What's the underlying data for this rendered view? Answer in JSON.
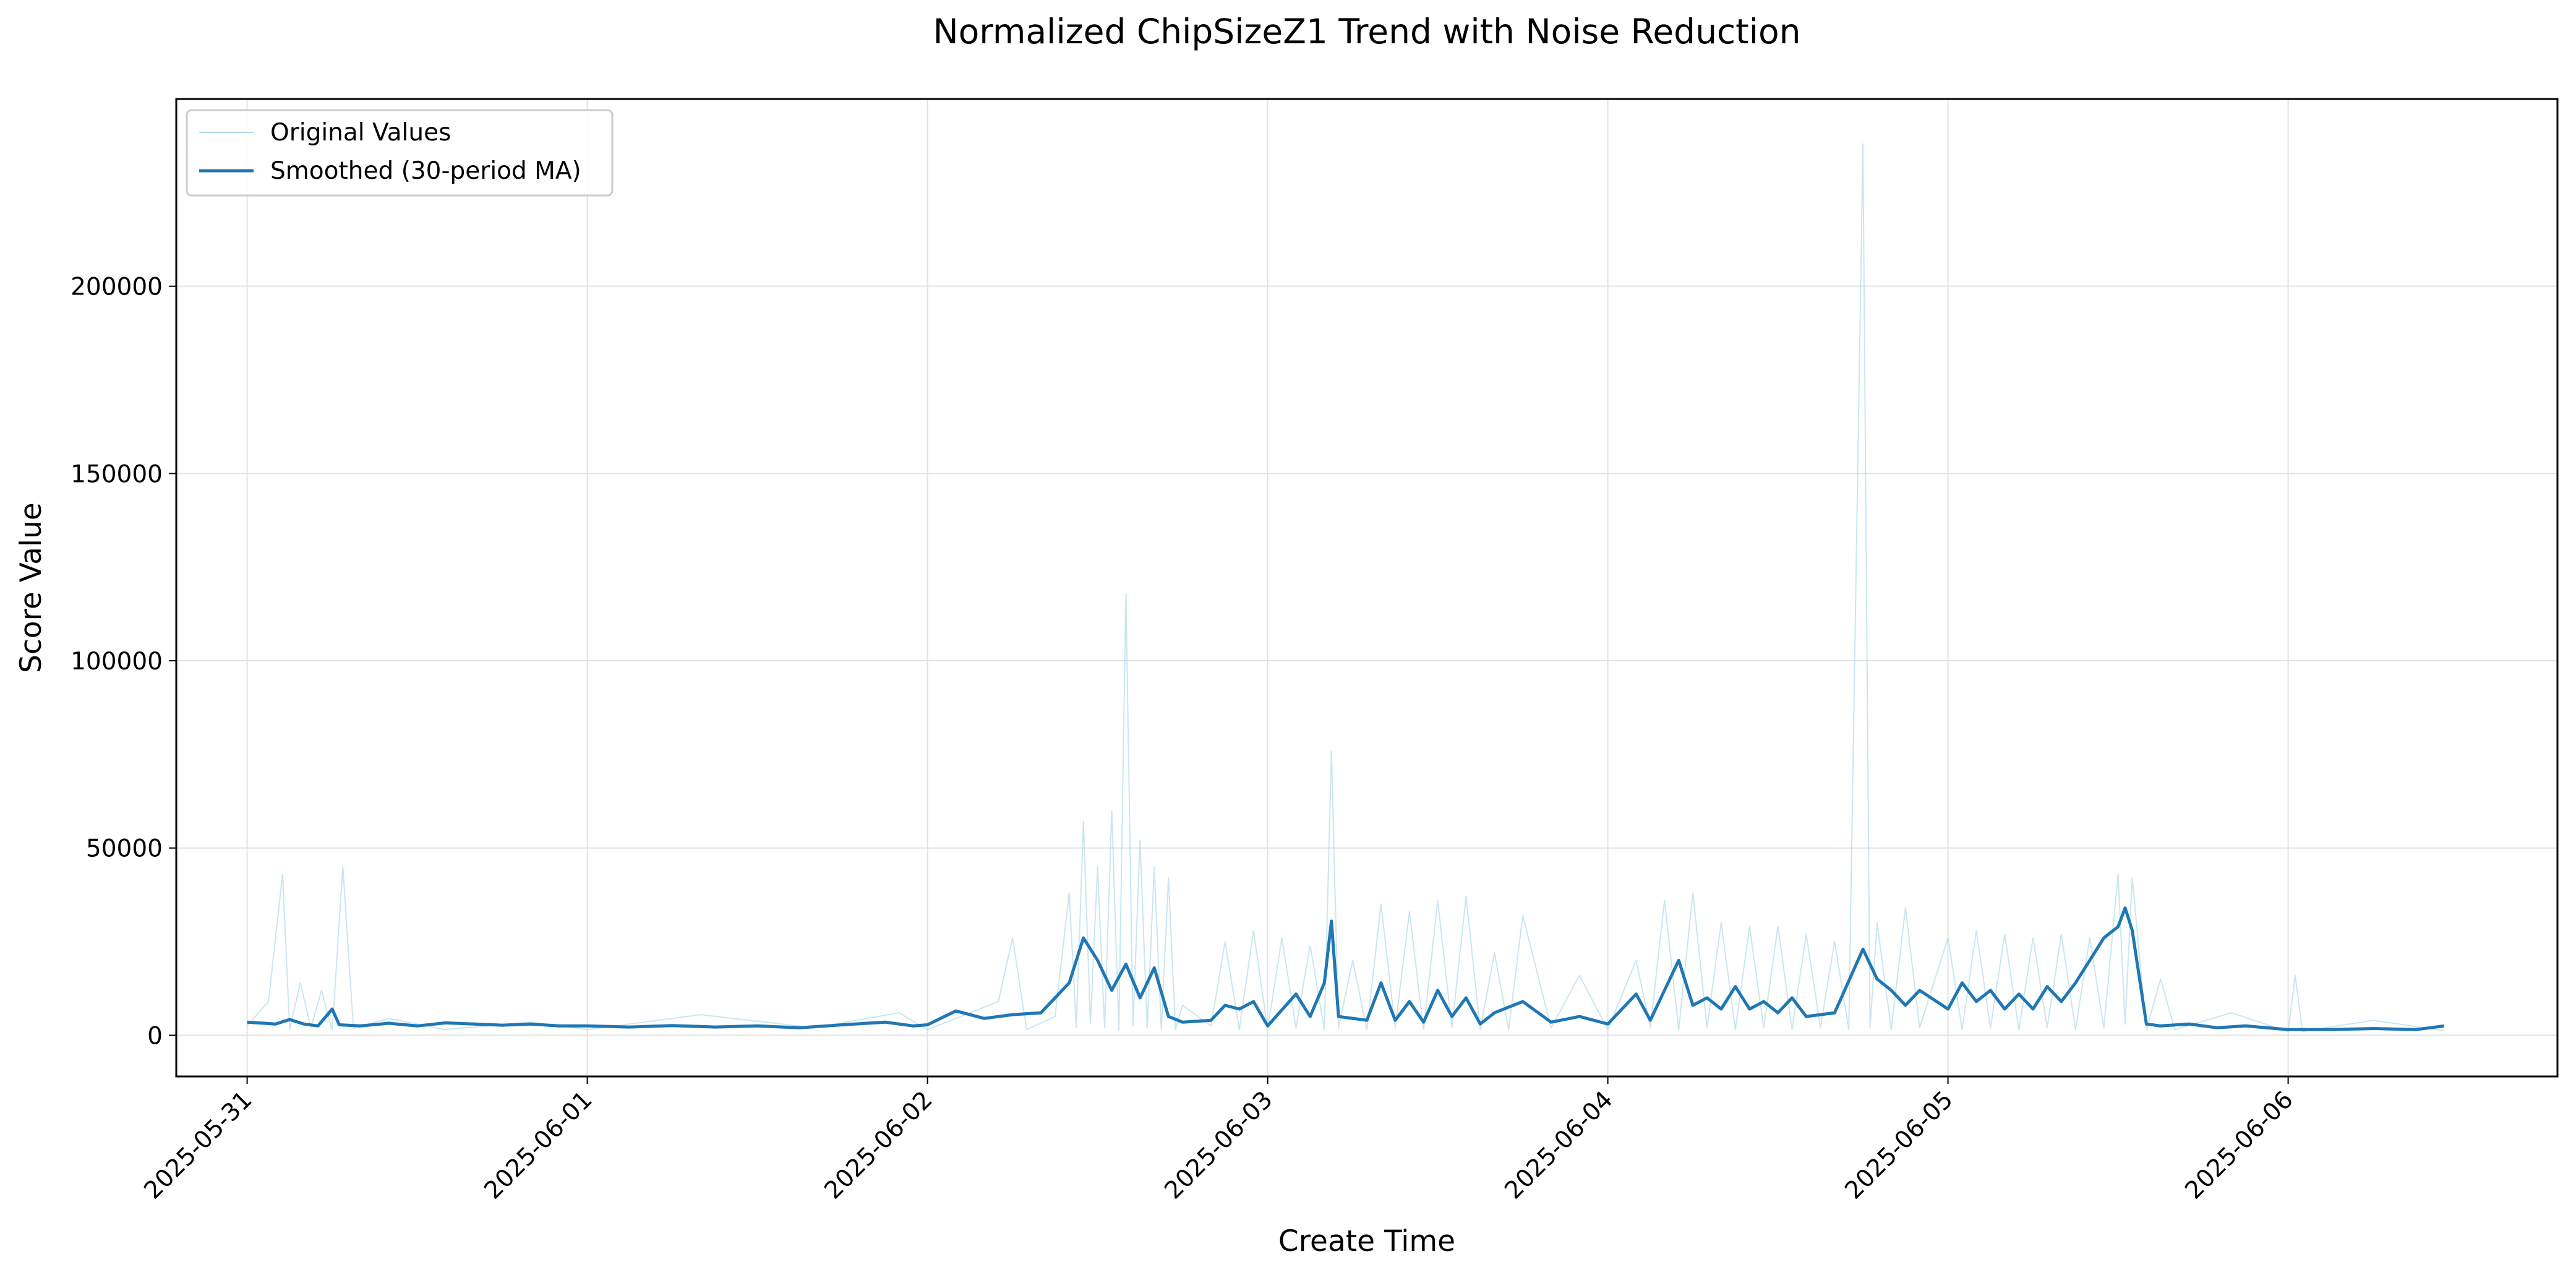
{
  "chart_data": {
    "type": "line",
    "title": "Normalized ChipSizeZ1 Trend with Noise Reduction",
    "xlabel": "Create Time",
    "ylabel": "Score Value",
    "x_axis_type": "date",
    "xlim": [
      "2025-05-30T19:00",
      "2025-06-06T19:00"
    ],
    "ylim": [
      -11000,
      250000
    ],
    "x_ticks": [
      "2025-05-31",
      "2025-06-01",
      "2025-06-02",
      "2025-06-03",
      "2025-06-04",
      "2025-06-05",
      "2025-06-06"
    ],
    "y_ticks": [
      0,
      50000,
      100000,
      150000,
      200000
    ],
    "grid": true,
    "legend_position": "top-left",
    "series": [
      {
        "name": "Original Values",
        "color": "#add8e6",
        "style": "thin-spiky",
        "points": [
          [
            "2025-05-31T00:00",
            2500
          ],
          [
            "2025-05-31T01:30",
            9000
          ],
          [
            "2025-05-31T02:30",
            43000
          ],
          [
            "2025-05-31T03:00",
            1500
          ],
          [
            "2025-05-31T03:45",
            14000
          ],
          [
            "2025-05-31T04:30",
            2000
          ],
          [
            "2025-05-31T05:15",
            12000
          ],
          [
            "2025-05-31T06:00",
            1200
          ],
          [
            "2025-05-31T06:45",
            45000
          ],
          [
            "2025-05-31T07:30",
            1800
          ],
          [
            "2025-05-31T10:00",
            4500
          ],
          [
            "2025-05-31T14:00",
            1500
          ],
          [
            "2025-05-31T20:00",
            3500
          ],
          [
            "2025-06-01T00:00",
            1500
          ],
          [
            "2025-06-01T08:00",
            5500
          ],
          [
            "2025-06-01T16:00",
            2000
          ],
          [
            "2025-06-01T22:00",
            6000
          ],
          [
            "2025-06-02T00:00",
            1500
          ],
          [
            "2025-06-02T05:00",
            9000
          ],
          [
            "2025-06-02T06:00",
            26000
          ],
          [
            "2025-06-02T07:00",
            1500
          ],
          [
            "2025-06-02T09:00",
            5000
          ],
          [
            "2025-06-02T10:00",
            38000
          ],
          [
            "2025-06-02T10:30",
            2000
          ],
          [
            "2025-06-02T11:00",
            57000
          ],
          [
            "2025-06-02T11:30",
            3000
          ],
          [
            "2025-06-02T12:00",
            45000
          ],
          [
            "2025-06-02T12:30",
            2000
          ],
          [
            "2025-06-02T13:00",
            60000
          ],
          [
            "2025-06-02T13:30",
            1500
          ],
          [
            "2025-06-02T14:00",
            118000
          ],
          [
            "2025-06-02T14:30",
            2500
          ],
          [
            "2025-06-02T15:00",
            52000
          ],
          [
            "2025-06-02T15:30",
            2000
          ],
          [
            "2025-06-02T16:00",
            45000
          ],
          [
            "2025-06-02T16:30",
            1500
          ],
          [
            "2025-06-02T17:00",
            42000
          ],
          [
            "2025-06-02T17:30",
            1500
          ],
          [
            "2025-06-02T18:00",
            8000
          ],
          [
            "2025-06-02T20:00",
            2500
          ],
          [
            "2025-06-02T21:00",
            25000
          ],
          [
            "2025-06-02T22:00",
            1500
          ],
          [
            "2025-06-02T23:00",
            28000
          ],
          [
            "2025-06-03T00:00",
            1500
          ],
          [
            "2025-06-03T01:00",
            26000
          ],
          [
            "2025-06-03T02:00",
            2000
          ],
          [
            "2025-06-03T03:00",
            24000
          ],
          [
            "2025-06-03T04:00",
            1500
          ],
          [
            "2025-06-03T04:30",
            76000
          ],
          [
            "2025-06-03T05:00",
            2000
          ],
          [
            "2025-06-03T06:00",
            20000
          ],
          [
            "2025-06-03T07:00",
            1500
          ],
          [
            "2025-06-03T08:00",
            35000
          ],
          [
            "2025-06-03T09:00",
            2000
          ],
          [
            "2025-06-03T10:00",
            33000
          ],
          [
            "2025-06-03T11:00",
            1500
          ],
          [
            "2025-06-03T12:00",
            36000
          ],
          [
            "2025-06-03T13:00",
            2000
          ],
          [
            "2025-06-03T14:00",
            37000
          ],
          [
            "2025-06-03T15:00",
            1500
          ],
          [
            "2025-06-03T16:00",
            22000
          ],
          [
            "2025-06-03T17:00",
            1500
          ],
          [
            "2025-06-03T18:00",
            32000
          ],
          [
            "2025-06-03T20:00",
            2000
          ],
          [
            "2025-06-03T22:00",
            16000
          ],
          [
            "2025-06-04T00:00",
            1500
          ],
          [
            "2025-06-04T02:00",
            20000
          ],
          [
            "2025-06-04T03:00",
            2000
          ],
          [
            "2025-06-04T04:00",
            36000
          ],
          [
            "2025-06-04T05:00",
            1500
          ],
          [
            "2025-06-04T06:00",
            38000
          ],
          [
            "2025-06-04T07:00",
            2000
          ],
          [
            "2025-06-04T08:00",
            30000
          ],
          [
            "2025-06-04T09:00",
            1500
          ],
          [
            "2025-06-04T10:00",
            29000
          ],
          [
            "2025-06-04T11:00",
            2000
          ],
          [
            "2025-06-04T12:00",
            29000
          ],
          [
            "2025-06-04T13:00",
            1500
          ],
          [
            "2025-06-04T14:00",
            27000
          ],
          [
            "2025-06-04T15:00",
            2000
          ],
          [
            "2025-06-04T16:00",
            25000
          ],
          [
            "2025-06-04T17:00",
            1500
          ],
          [
            "2025-06-04T18:00",
            238000
          ],
          [
            "2025-06-04T18:30",
            2000
          ],
          [
            "2025-06-04T19:00",
            30000
          ],
          [
            "2025-06-04T20:00",
            1500
          ],
          [
            "2025-06-04T21:00",
            34000
          ],
          [
            "2025-06-04T22:00",
            2000
          ],
          [
            "2025-06-05T00:00",
            26000
          ],
          [
            "2025-06-05T01:00",
            1500
          ],
          [
            "2025-06-05T02:00",
            28000
          ],
          [
            "2025-06-05T03:00",
            2000
          ],
          [
            "2025-06-05T04:00",
            27000
          ],
          [
            "2025-06-05T05:00",
            1500
          ],
          [
            "2025-06-05T06:00",
            26000
          ],
          [
            "2025-06-05T07:00",
            2000
          ],
          [
            "2025-06-05T08:00",
            27000
          ],
          [
            "2025-06-05T09:00",
            1500
          ],
          [
            "2025-06-05T10:00",
            26000
          ],
          [
            "2025-06-05T11:00",
            2000
          ],
          [
            "2025-06-05T12:00",
            43000
          ],
          [
            "2025-06-05T12:30",
            3000
          ],
          [
            "2025-06-05T13:00",
            42000
          ],
          [
            "2025-06-05T14:00",
            1500
          ],
          [
            "2025-06-05T15:00",
            15000
          ],
          [
            "2025-06-05T16:00",
            1500
          ],
          [
            "2025-06-05T20:00",
            6000
          ],
          [
            "2025-06-06T00:00",
            1000
          ],
          [
            "2025-06-06T00:30",
            16000
          ],
          [
            "2025-06-06T01:00",
            1000
          ],
          [
            "2025-06-06T06:00",
            4000
          ],
          [
            "2025-06-06T11:00",
            1200
          ]
        ]
      },
      {
        "name": "Smoothed (30-period MA)",
        "color": "#1f77b4",
        "style": "solid",
        "points": [
          [
            "2025-05-31T00:00",
            3500
          ],
          [
            "2025-05-31T02:00",
            3000
          ],
          [
            "2025-05-31T03:00",
            4200
          ],
          [
            "2025-05-31T04:00",
            3000
          ],
          [
            "2025-05-31T05:00",
            2500
          ],
          [
            "2025-05-31T06:00",
            7000
          ],
          [
            "2025-05-31T06:30",
            2800
          ],
          [
            "2025-05-31T08:00",
            2500
          ],
          [
            "2025-05-31T10:00",
            3200
          ],
          [
            "2025-05-31T12:00",
            2500
          ],
          [
            "2025-05-31T14:00",
            3300
          ],
          [
            "2025-05-31T16:00",
            3000
          ],
          [
            "2025-05-31T18:00",
            2700
          ],
          [
            "2025-05-31T20:00",
            3000
          ],
          [
            "2025-05-31T22:00",
            2500
          ],
          [
            "2025-06-01T00:00",
            2500
          ],
          [
            "2025-06-01T03:00",
            2200
          ],
          [
            "2025-06-01T06:00",
            2600
          ],
          [
            "2025-06-01T09:00",
            2200
          ],
          [
            "2025-06-01T12:00",
            2500
          ],
          [
            "2025-06-01T15:00",
            2000
          ],
          [
            "2025-06-01T18:00",
            2800
          ],
          [
            "2025-06-01T21:00",
            3500
          ],
          [
            "2025-06-01T23:00",
            2500
          ],
          [
            "2025-06-02T00:00",
            2800
          ],
          [
            "2025-06-02T02:00",
            6500
          ],
          [
            "2025-06-02T04:00",
            4500
          ],
          [
            "2025-06-02T06:00",
            5500
          ],
          [
            "2025-06-02T08:00",
            6000
          ],
          [
            "2025-06-02T10:00",
            14000
          ],
          [
            "2025-06-02T11:00",
            26000
          ],
          [
            "2025-06-02T12:00",
            20000
          ],
          [
            "2025-06-02T13:00",
            12000
          ],
          [
            "2025-06-02T14:00",
            19000
          ],
          [
            "2025-06-02T15:00",
            10000
          ],
          [
            "2025-06-02T16:00",
            18000
          ],
          [
            "2025-06-02T17:00",
            5000
          ],
          [
            "2025-06-02T18:00",
            3500
          ],
          [
            "2025-06-02T20:00",
            4000
          ],
          [
            "2025-06-02T21:00",
            8000
          ],
          [
            "2025-06-02T22:00",
            7000
          ],
          [
            "2025-06-02T23:00",
            9000
          ],
          [
            "2025-06-03T00:00",
            2500
          ],
          [
            "2025-06-03T02:00",
            11000
          ],
          [
            "2025-06-03T03:00",
            5000
          ],
          [
            "2025-06-03T04:00",
            14000
          ],
          [
            "2025-06-03T04:30",
            30500
          ],
          [
            "2025-06-03T05:00",
            5000
          ],
          [
            "2025-06-03T07:00",
            4000
          ],
          [
            "2025-06-03T08:00",
            14000
          ],
          [
            "2025-06-03T09:00",
            4000
          ],
          [
            "2025-06-03T10:00",
            9000
          ],
          [
            "2025-06-03T11:00",
            3500
          ],
          [
            "2025-06-03T12:00",
            12000
          ],
          [
            "2025-06-03T13:00",
            5000
          ],
          [
            "2025-06-03T14:00",
            10000
          ],
          [
            "2025-06-03T15:00",
            3000
          ],
          [
            "2025-06-03T16:00",
            6000
          ],
          [
            "2025-06-03T18:00",
            9000
          ],
          [
            "2025-06-03T20:00",
            3500
          ],
          [
            "2025-06-03T22:00",
            5000
          ],
          [
            "2025-06-04T00:00",
            3000
          ],
          [
            "2025-06-04T02:00",
            11000
          ],
          [
            "2025-06-04T03:00",
            4000
          ],
          [
            "2025-06-04T05:00",
            20000
          ],
          [
            "2025-06-04T06:00",
            8000
          ],
          [
            "2025-06-04T07:00",
            10000
          ],
          [
            "2025-06-04T08:00",
            7000
          ],
          [
            "2025-06-04T09:00",
            13000
          ],
          [
            "2025-06-04T10:00",
            7000
          ],
          [
            "2025-06-04T11:00",
            9000
          ],
          [
            "2025-06-04T12:00",
            6000
          ],
          [
            "2025-06-04T13:00",
            10000
          ],
          [
            "2025-06-04T14:00",
            5000
          ],
          [
            "2025-06-04T16:00",
            6000
          ],
          [
            "2025-06-04T18:00",
            23000
          ],
          [
            "2025-06-04T19:00",
            15000
          ],
          [
            "2025-06-04T20:00",
            12000
          ],
          [
            "2025-06-04T21:00",
            8000
          ],
          [
            "2025-06-04T22:00",
            12000
          ],
          [
            "2025-06-05T00:00",
            7000
          ],
          [
            "2025-06-05T01:00",
            14000
          ],
          [
            "2025-06-05T02:00",
            9000
          ],
          [
            "2025-06-05T03:00",
            12000
          ],
          [
            "2025-06-05T04:00",
            7000
          ],
          [
            "2025-06-05T05:00",
            11000
          ],
          [
            "2025-06-05T06:00",
            7000
          ],
          [
            "2025-06-05T07:00",
            13000
          ],
          [
            "2025-06-05T08:00",
            9000
          ],
          [
            "2025-06-05T09:00",
            14000
          ],
          [
            "2025-06-05T10:00",
            20000
          ],
          [
            "2025-06-05T11:00",
            26000
          ],
          [
            "2025-06-05T12:00",
            29000
          ],
          [
            "2025-06-05T12:30",
            34000
          ],
          [
            "2025-06-05T13:00",
            28000
          ],
          [
            "2025-06-05T14:00",
            3000
          ],
          [
            "2025-06-05T15:00",
            2500
          ],
          [
            "2025-06-05T17:00",
            3000
          ],
          [
            "2025-06-05T19:00",
            2000
          ],
          [
            "2025-06-05T21:00",
            2500
          ],
          [
            "2025-06-06T00:00",
            1500
          ],
          [
            "2025-06-06T03:00",
            1500
          ],
          [
            "2025-06-06T06:00",
            1800
          ],
          [
            "2025-06-06T09:00",
            1500
          ],
          [
            "2025-06-06T11:00",
            2500
          ]
        ]
      }
    ]
  }
}
